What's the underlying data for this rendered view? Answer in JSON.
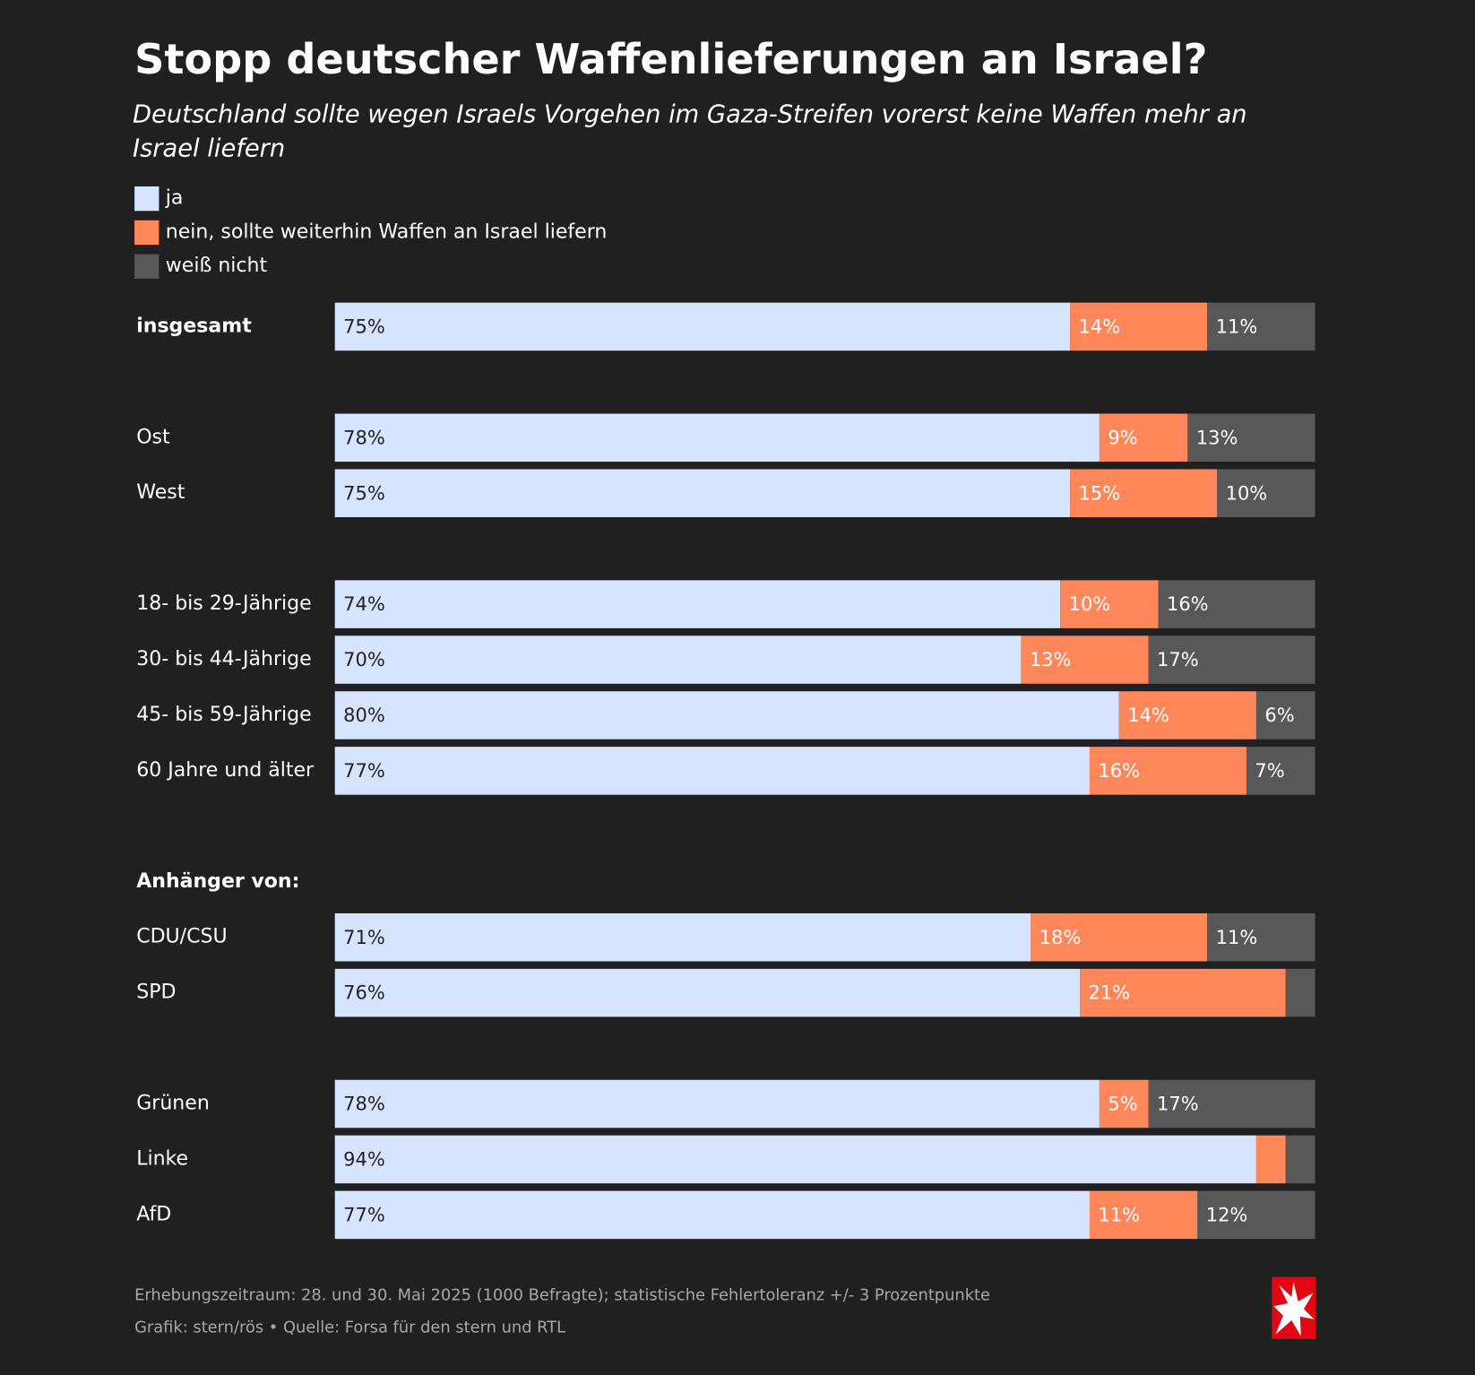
{
  "chart_data": {
    "type": "stacked-bar-horizontal",
    "title": "Stopp deutscher Waffenlieferungen an Israel?",
    "subtitle": "Deutschland sollte wegen Israels Vorgehen im Gaza-Streifen vorerst keine Waffen mehr an Israel liefern",
    "categories": [
      "insgesamt",
      null,
      "Ost",
      "West",
      null,
      "18- bis 29-Jährige",
      "30- bis 44-Jährige",
      "45- bis 59-Jährige",
      "60 Jahre und älter",
      null,
      "Anhänger von:",
      "CDU/CSU",
      "SPD",
      null,
      "Grünen",
      "Linke",
      "AfD"
    ],
    "xlim": [
      0,
      100
    ],
    "series": [
      {
        "name": "ja",
        "color": "#d6e4ff",
        "label_color": "#222222",
        "values": [
          75,
          null,
          78,
          75,
          null,
          74,
          70,
          80,
          77,
          null,
          null,
          71,
          76,
          null,
          78,
          94,
          77
        ],
        "value_labels": [
          "75%",
          null,
          "78%",
          "75%",
          null,
          "74%",
          "70%",
          "80%",
          "77%",
          null,
          null,
          "71%",
          "76%",
          null,
          "78%",
          "94%",
          "77%"
        ]
      },
      {
        "name": "nein, sollte weiterhin Waffen an Israel liefern",
        "color": "#ff875a",
        "label_color": "#ffffff",
        "values": [
          14,
          null,
          9,
          15,
          null,
          10,
          13,
          14,
          16,
          null,
          null,
          18,
          21,
          null,
          5,
          3,
          11
        ],
        "value_labels": [
          "14%",
          null,
          "9%",
          "15%",
          null,
          "10%",
          "13%",
          "14%",
          "16%",
          null,
          null,
          "18%",
          "21%",
          null,
          "5%",
          null,
          "11%"
        ]
      },
      {
        "name": "weiß nicht",
        "color": "#585858",
        "label_color": "#ffffff",
        "values": [
          11,
          null,
          13,
          10,
          null,
          16,
          17,
          6,
          7,
          null,
          null,
          11,
          3,
          null,
          17,
          3,
          12
        ],
        "value_labels": [
          "11%",
          null,
          "13%",
          "10%",
          null,
          "16%",
          "17%",
          "6%",
          "7%",
          null,
          null,
          "11%",
          null,
          null,
          "17%",
          null,
          "12%"
        ]
      }
    ],
    "notes": [
      "Erhebungszeitraum: 28. und 30. Mai 2025 (1000 Befragte); statistische Fehlertoleranz +/- 3 Prozentpunkte",
      "Grafik: stern/rös • Quelle: Forsa für den stern und RTL"
    ]
  }
}
